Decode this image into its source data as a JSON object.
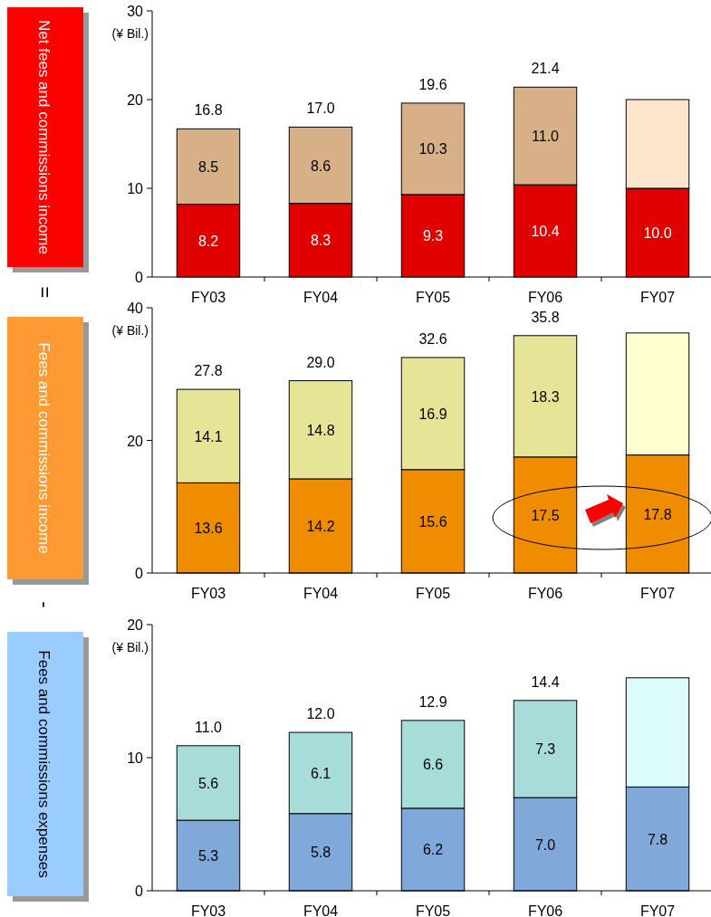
{
  "chart_data": [
    {
      "type": "bar",
      "title": "Net fees and commissions income",
      "ylabel": "(¥ Bil.)",
      "categories": [
        "FY03",
        "FY04",
        "FY05",
        "FY06",
        "FY07"
      ],
      "stacked": true,
      "ylim": [
        0,
        30
      ],
      "yticks": [
        0,
        10,
        20,
        30
      ],
      "annotations": [
        "="
      ],
      "series": [
        {
          "colors": [
            "#e00000",
            "#e00000",
            "#e00000",
            "#e00000",
            "#e00000"
          ],
          "values": [
            8.2,
            8.3,
            9.3,
            10.4,
            10.0
          ],
          "value_labels": [
            "8.2",
            "8.3",
            "9.3",
            "10.4",
            "10.0"
          ]
        },
        {
          "colors": [
            "#d8b088",
            "#d8b088",
            "#d8b088",
            "#d8b088",
            "#fde4cc"
          ],
          "values": [
            8.5,
            8.6,
            10.3,
            11.0,
            10.0
          ],
          "value_labels": [
            "8.5",
            "8.6",
            "10.3",
            "11.0",
            null
          ]
        }
      ],
      "totals": [
        "16.8",
        "17.0",
        "19.6",
        "21.4",
        null
      ]
    },
    {
      "type": "bar",
      "title": "Fees and commissions income",
      "ylabel": "(¥ Bil.)",
      "categories": [
        "FY03",
        "FY04",
        "FY05",
        "FY06",
        "FY07"
      ],
      "stacked": true,
      "ylim": [
        0,
        40
      ],
      "yticks": [
        0,
        20,
        40
      ],
      "annotations": [
        "-"
      ],
      "series": [
        {
          "colors": [
            "#f08c00",
            "#f08c00",
            "#f08c00",
            "#f08c00",
            "#f08c00"
          ],
          "values": [
            13.6,
            14.2,
            15.6,
            17.5,
            17.8
          ],
          "value_labels": [
            "13.6",
            "14.2",
            "15.6",
            "17.5",
            "17.8"
          ]
        },
        {
          "colors": [
            "#e6e496",
            "#e6e496",
            "#e6e496",
            "#e6e496",
            "#ffffd0"
          ],
          "values": [
            14.1,
            14.8,
            16.9,
            18.3,
            18.4
          ],
          "value_labels": [
            "14.1",
            "14.8",
            "16.9",
            "18.3",
            null
          ]
        }
      ],
      "totals": [
        "27.8",
        "29.0",
        "32.6",
        "35.8",
        null
      ]
    },
    {
      "type": "bar",
      "title": "Fees and commissions expenses",
      "ylabel": "(¥ Bil.)",
      "categories": [
        "FY03",
        "FY04",
        "FY05",
        "FY06",
        "FY07"
      ],
      "stacked": true,
      "ylim": [
        0,
        20
      ],
      "yticks": [
        0,
        10,
        20
      ],
      "series": [
        {
          "colors": [
            "#80a8d8",
            "#80a8d8",
            "#80a8d8",
            "#80a8d8",
            "#80a8d8"
          ],
          "values": [
            5.3,
            5.8,
            6.2,
            7.0,
            7.8
          ],
          "value_labels": [
            "5.3",
            "5.8",
            "6.2",
            "7.0",
            "7.8"
          ]
        },
        {
          "colors": [
            "#a8dcd8",
            "#a8dcd8",
            "#a8dcd8",
            "#a8dcd8",
            "#dcfcfc"
          ],
          "values": [
            5.6,
            6.1,
            6.6,
            7.3,
            8.2
          ],
          "value_labels": [
            "5.6",
            "6.1",
            "6.6",
            "7.3",
            null
          ]
        }
      ],
      "totals": [
        "11.0",
        "12.0",
        "12.9",
        "14.4",
        null
      ]
    }
  ]
}
